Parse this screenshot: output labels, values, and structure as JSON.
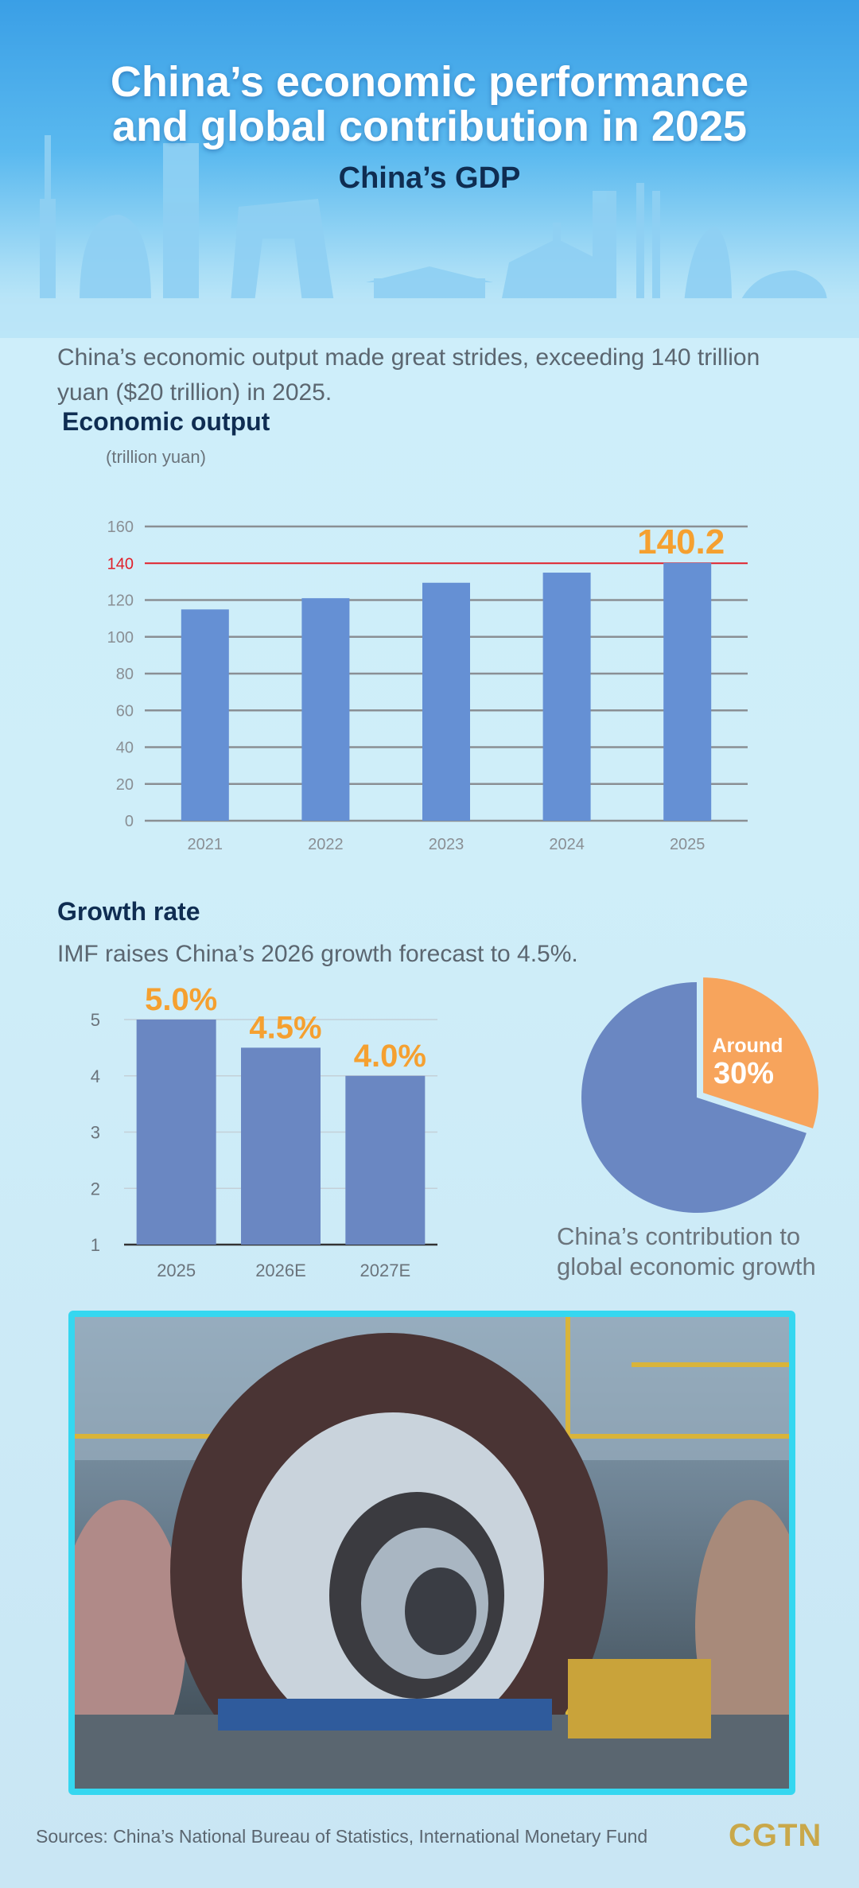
{
  "header": {
    "title_line1": "China’s economic performance",
    "title_line2": "and global contribution in 2025",
    "subtitle": "China’s GDP"
  },
  "intro": "China’s economic output made great strides, exceeding 140 trillion yuan ($20 trillion) in 2025.",
  "growth": {
    "heading": "Growth rate",
    "subtext": "IMF raises China’s 2026 growth forecast to 4.5%."
  },
  "photo": {
    "description_icon": "industrial-photo"
  },
  "footer": {
    "sources": "Sources: China’s National Bureau of Statistics, International Monetary Fund",
    "logo": "CGTN"
  },
  "colors": {
    "bar": "#6590d4",
    "bar2": "#6a87c2",
    "highlight": "#f5a030",
    "refline": "#e0202a",
    "pie_other": "#6a87c2",
    "pie_china": "#f7a45c",
    "frame": "#35d7f0"
  },
  "chart_data": [
    {
      "type": "bar",
      "title": "Economic output",
      "ylabel": "(trillion yuan)",
      "categories": [
        "2021",
        "2022",
        "2023",
        "2024",
        "2025"
      ],
      "values": [
        114.9,
        121.0,
        129.4,
        134.9,
        140.2
      ],
      "ylim": [
        0,
        160
      ],
      "yticks": [
        "0",
        "20",
        "40",
        "60",
        "80",
        "100",
        "120",
        "140",
        "160"
      ],
      "grid": true,
      "reference_line": 140,
      "data_labels": [
        {
          "category": "2025",
          "text": "140.2"
        }
      ]
    },
    {
      "type": "bar",
      "categories": [
        "2025",
        "2026E",
        "2027E"
      ],
      "values": [
        5.0,
        4.5,
        4.0
      ],
      "ylim": [
        1,
        5
      ],
      "yticks": [
        "1",
        "2",
        "3",
        "4",
        "5"
      ],
      "grid": true,
      "data_labels": [
        "5.0%",
        "4.5%",
        "4.0%"
      ]
    },
    {
      "type": "pie",
      "slices": [
        {
          "label": "Around 30%",
          "value": 30
        },
        {
          "label": "",
          "value": 70
        }
      ],
      "label_line1": "Around",
      "label_line2": "30%",
      "caption": "China’s contribution to global economic growth"
    }
  ]
}
